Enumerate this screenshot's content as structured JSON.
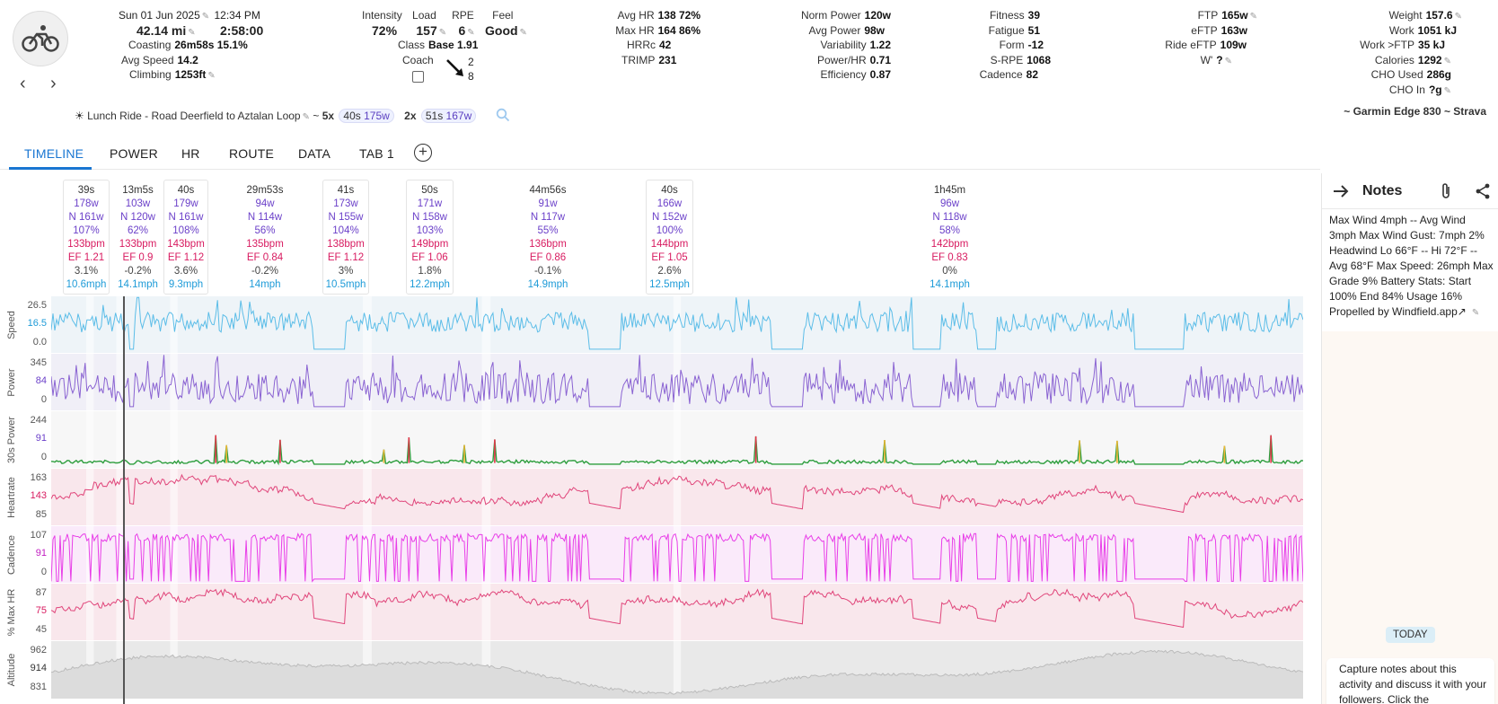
{
  "activity": {
    "date": "Sun 01 Jun 2025",
    "time": "12:34 PM",
    "distance": "42.14 mi",
    "duration": "2:58:00",
    "coasting_label": "Coasting",
    "coasting": "26m58s 15.1%",
    "avg_speed_label": "Avg Speed",
    "avg_speed": "14.2",
    "climbing_label": "Climbing",
    "climbing": "1253ft"
  },
  "load_stats": {
    "intensity_label": "Intensity",
    "intensity": "72%",
    "load_label": "Load",
    "load": "157",
    "rpe_label": "RPE",
    "rpe": "6",
    "feel_label": "Feel",
    "feel": "Good",
    "class_label": "Class",
    "class_value": "Base 1.91",
    "coach_label": "Coach",
    "trend_top": "2",
    "trend_bottom": "8"
  },
  "hr_stats": [
    {
      "label": "Avg HR",
      "value": "138 72%"
    },
    {
      "label": "Max HR",
      "value": "164 86%"
    },
    {
      "label": "HRRc",
      "value": "42"
    },
    {
      "label": "TRIMP",
      "value": "231"
    }
  ],
  "power_stats": [
    {
      "label": "Norm Power",
      "value": "120w"
    },
    {
      "label": "Avg Power",
      "value": "98w"
    },
    {
      "label": "Variability",
      "value": "1.22"
    },
    {
      "label": "Power/HR",
      "value": "0.71"
    },
    {
      "label": "Efficiency",
      "value": "0.87"
    }
  ],
  "fitness_stats": [
    {
      "label": "Fitness",
      "value": "39"
    },
    {
      "label": "Fatigue",
      "value": "51"
    },
    {
      "label": "Form",
      "value": "-12"
    },
    {
      "label": "S-RPE",
      "value": "1068"
    },
    {
      "label": "Cadence",
      "value": "82"
    }
  ],
  "ftp_stats": [
    {
      "label": "FTP",
      "value": "165w"
    },
    {
      "label": "eFTP",
      "value": "163w"
    },
    {
      "label": "Ride eFTP",
      "value": "109w"
    },
    {
      "label": "W'",
      "value": "?"
    }
  ],
  "energy_stats": [
    {
      "label": "Weight",
      "value": "157.6"
    },
    {
      "label": "Work",
      "value": "1051 kJ"
    },
    {
      "label": "Work >FTP",
      "value": "35 kJ"
    },
    {
      "label": "Calories",
      "value": "1292"
    },
    {
      "label": "CHO Used",
      "value": "286g"
    },
    {
      "label": "CHO In",
      "value": "?g"
    }
  ],
  "title_line": {
    "name": "Lunch Ride - Road Deerfield to Aztalan Loop",
    "tilde": "~",
    "group1_count": "5x",
    "group1_dur": "40s",
    "group1_pow": "175w",
    "group2_count": "2x",
    "group2_dur": "51s",
    "group2_pow": "167w"
  },
  "device": "~ Garmin Edge 830 ~ Strava",
  "tabs": [
    "TIMELINE",
    "POWER",
    "HR",
    "ROUTE",
    "DATA",
    "TAB 1"
  ],
  "intervals": [
    {
      "dur": "39s",
      "pow": "178w",
      "np": "N 161w",
      "int": "107%",
      "hr": "133bpm",
      "ef": "EF 1.21",
      "grade": "3.1%",
      "speed": "10.6mph",
      "boxed": true
    },
    {
      "dur": "13m5s",
      "pow": "103w",
      "np": "N 120w",
      "int": "62%",
      "hr": "133bpm",
      "ef": "EF 0.9",
      "grade": "-0.2%",
      "speed": "14.1mph",
      "boxed": false
    },
    {
      "dur": "40s",
      "pow": "179w",
      "np": "N 161w",
      "int": "108%",
      "hr": "143bpm",
      "ef": "EF 1.12",
      "grade": "3.6%",
      "speed": "9.3mph",
      "boxed": true
    },
    {
      "dur": "29m53s",
      "pow": "94w",
      "np": "N 114w",
      "int": "56%",
      "hr": "135bpm",
      "ef": "EF 0.84",
      "grade": "-0.2%",
      "speed": "14mph",
      "boxed": false
    },
    {
      "dur": "41s",
      "pow": "173w",
      "np": "N 155w",
      "int": "104%",
      "hr": "138bpm",
      "ef": "EF 1.12",
      "grade": "3%",
      "speed": "10.5mph",
      "boxed": true
    },
    {
      "dur": "50s",
      "pow": "171w",
      "np": "N 158w",
      "int": "103%",
      "hr": "149bpm",
      "ef": "EF 1.06",
      "grade": "1.8%",
      "speed": "12.2mph",
      "boxed": true
    },
    {
      "dur": "44m56s",
      "pow": "91w",
      "np": "N 117w",
      "int": "55%",
      "hr": "136bpm",
      "ef": "EF 0.86",
      "grade": "-0.1%",
      "speed": "14.9mph",
      "boxed": false
    },
    {
      "dur": "40s",
      "pow": "166w",
      "np": "N 152w",
      "int": "100%",
      "hr": "144bpm",
      "ef": "EF 1.05",
      "grade": "2.6%",
      "speed": "12.5mph",
      "boxed": true
    },
    {
      "dur": "1h45m",
      "pow": "96w",
      "np": "N 118w",
      "int": "58%",
      "hr": "142bpm",
      "ef": "EF 0.83",
      "grade": "0%",
      "speed": "14.1mph",
      "boxed": false
    }
  ],
  "charts": [
    {
      "label": "Speed",
      "ticks": [
        "26.5",
        "16.5",
        "0.0"
      ],
      "color": "#5bbde8",
      "fill": "#eef4f8",
      "mid_color": "#1e9bd8"
    },
    {
      "label": "Power",
      "ticks": [
        "345",
        "84",
        "0"
      ],
      "color": "#8a63d2",
      "fill": "#f0eff7",
      "mid_color": "#6b40c9"
    },
    {
      "label": "30s Power",
      "ticks": [
        "244",
        "91",
        "0"
      ],
      "color": "#2e9e3e",
      "fill": "#f7f7f7",
      "mid_color": "#6b40c9"
    },
    {
      "label": "Heartrate",
      "ticks": [
        "163",
        "143",
        "85"
      ],
      "color": "#e0457a",
      "fill": "#f9e7ec",
      "mid_color": "#d81b60"
    },
    {
      "label": "Cadence",
      "ticks": [
        "107",
        "91",
        "0"
      ],
      "color": "#e83ee8",
      "fill": "#faeafa",
      "mid_color": "#c21fc2"
    },
    {
      "label": "% Max HR",
      "ticks": [
        "87",
        "75",
        "45"
      ],
      "color": "#e0457a",
      "fill": "#f9e7ec",
      "mid_color": "#d81b60"
    },
    {
      "label": "Altitude",
      "ticks": [
        "962",
        "914",
        "831"
      ],
      "color": "#bbbbbb",
      "fill": "#e9e9e9",
      "mid_color": "#333333"
    }
  ],
  "notes": {
    "title": "Notes",
    "body": "Max Wind 4mph -- Avg Wind 3mph Max Wind Gust: 7mph 2% Headwind Lo 66°F -- Hi 72°F -- Avg 68°F Max Speed: 26mph Max Grade 9% Battery Stats: Start 100% End 84% Usage 16% Propelled by Windfield.app",
    "today": "TODAY",
    "prompt": "Capture notes about this activity and discuss it with your followers. Click the"
  }
}
